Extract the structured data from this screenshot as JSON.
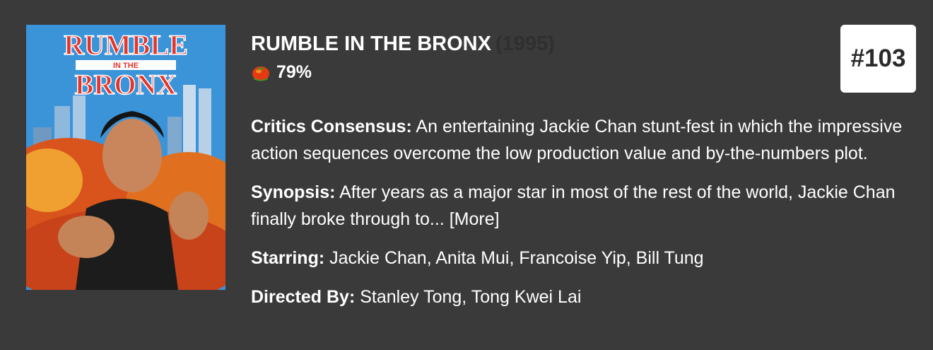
{
  "movie": {
    "title": "RUMBLE IN THE BRONX",
    "year": "(1995)",
    "tomatometer": "79%",
    "rank": "#103",
    "poster": {
      "alt": "Rumble in the Bronx poster",
      "logo_line1": "RUMBLE",
      "logo_mid": "IN THE",
      "logo_line2": "BRONX"
    },
    "critics_consensus": {
      "label": "Critics Consensus:",
      "text": "An entertaining Jackie Chan stunt-fest in which the impressive action sequences overcome the low production value and by-the-numbers plot."
    },
    "synopsis": {
      "label": "Synopsis:",
      "text": "After years as a major star in most of the rest of the world, Jackie Chan finally broke through to...",
      "more_label": "[More]"
    },
    "starring": {
      "label": "Starring:",
      "text": "Jackie Chan, Anita Mui, Francoise Yip, Bill Tung"
    },
    "directed_by": {
      "label": "Directed By:",
      "text": "Stanley Tong, Tong Kwei Lai"
    }
  },
  "colors": {
    "background": "#3a3a3a",
    "text": "#ffffff",
    "badge_bg": "#ffffff",
    "badge_text": "#2a2a2a",
    "year_text": "#2f2f2f",
    "tomato_red": "#e23a12"
  },
  "icons": {
    "score": "fresh-tomato-icon"
  }
}
